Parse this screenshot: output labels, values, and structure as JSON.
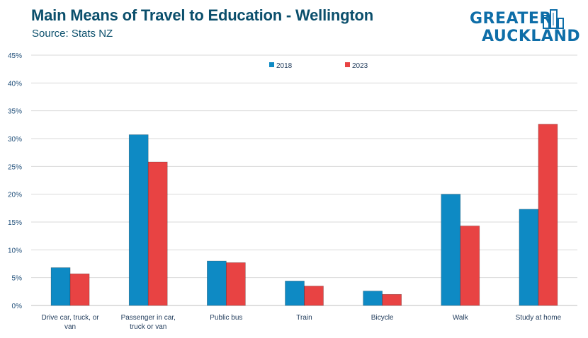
{
  "header": {
    "title": "Main Means of Travel to Education - Wellington",
    "subtitle": "Source: Stats NZ"
  },
  "logo": {
    "line1": "GREATER",
    "line2": "AUCKLAND"
  },
  "colors": {
    "series_2018": "#0e8ac4",
    "series_2023": "#e84343",
    "grid": "#d9d9d9",
    "title": "#0b4f6c"
  },
  "chart_data": {
    "type": "bar",
    "title": "Main Means of Travel to Education - Wellington",
    "subtitle": "Source: Stats NZ",
    "xlabel": "",
    "ylabel": "",
    "ylim": [
      0,
      45
    ],
    "y_tick_step": 5,
    "y_tick_format": "percent",
    "grid": true,
    "legend_position": "top-center",
    "categories": [
      [
        "Drive car, truck, or",
        "van"
      ],
      [
        "Passenger in car,",
        "truck or van"
      ],
      [
        "Public bus"
      ],
      [
        "Train"
      ],
      [
        "Bicycle"
      ],
      [
        "Walk"
      ],
      [
        "Study at home"
      ]
    ],
    "series": [
      {
        "name": "2018",
        "color": "#0e8ac4",
        "values": [
          6.8,
          30.7,
          8.0,
          4.4,
          2.6,
          20.0,
          17.3
        ]
      },
      {
        "name": "2023",
        "color": "#e84343",
        "values": [
          5.7,
          25.8,
          7.7,
          3.5,
          2.0,
          14.3,
          32.6
        ]
      }
    ]
  }
}
